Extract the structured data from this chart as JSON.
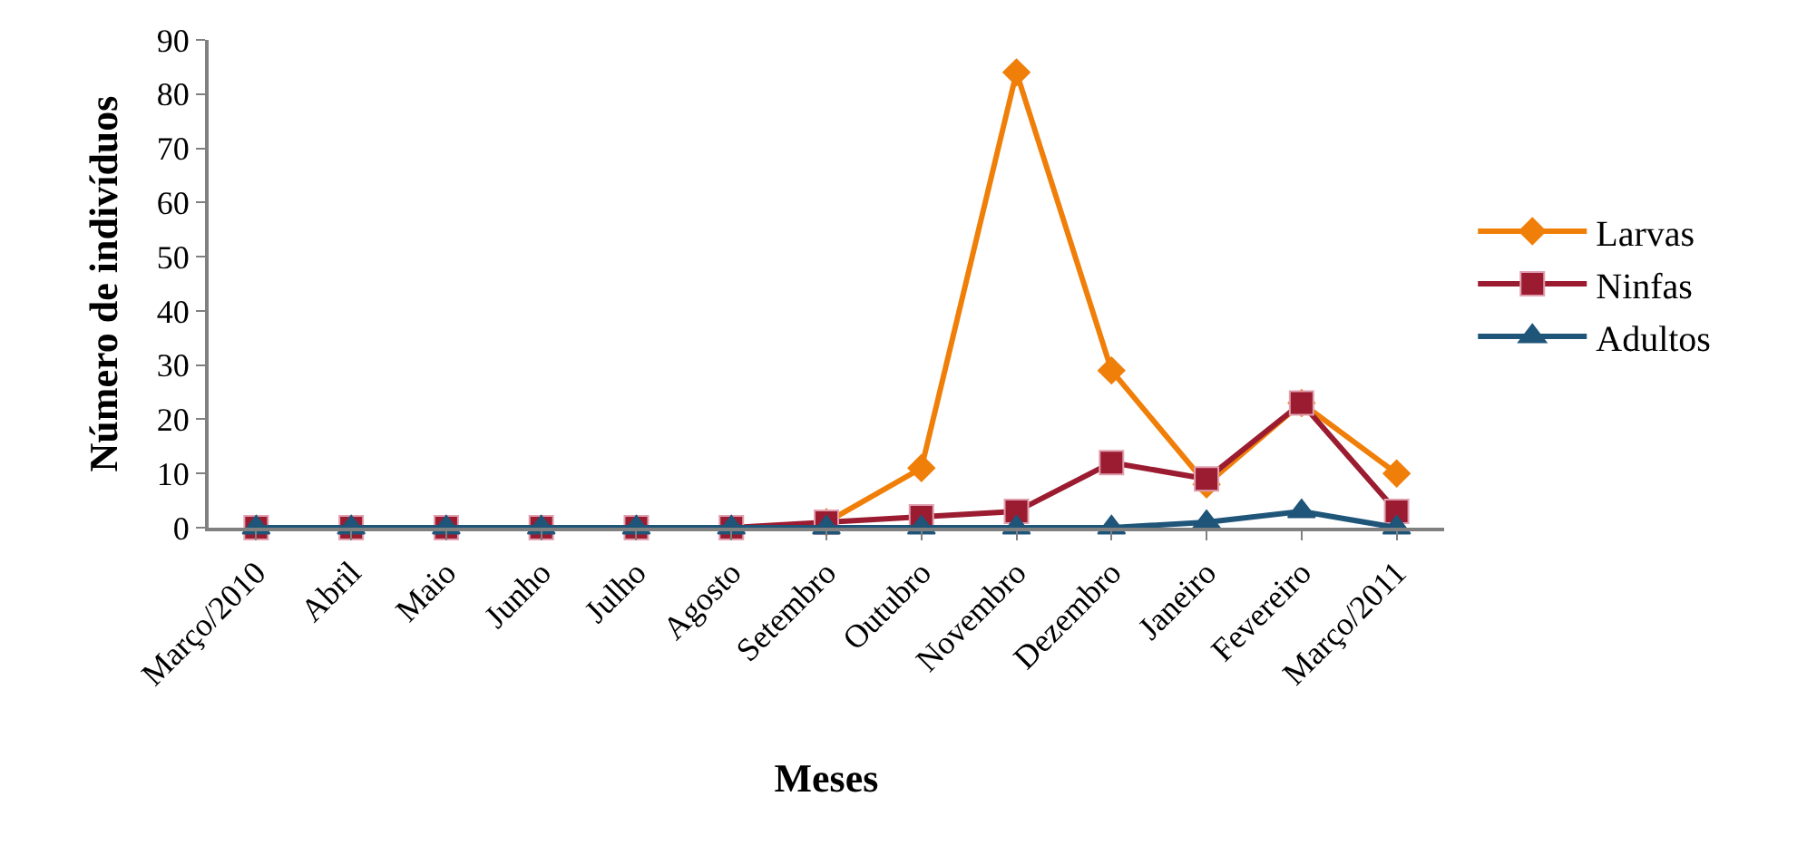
{
  "chart_data": {
    "type": "line",
    "xlabel": "Meses",
    "ylabel": "Número de indivíduos",
    "categories": [
      "Março/2010",
      "Abril",
      "Maio",
      "Junho",
      "Julho",
      "Agosto",
      "Setembro",
      "Outubro",
      "Novembro",
      "Dezembro",
      "Janeiro",
      "Fevereiro",
      "Março/2011"
    ],
    "series": [
      {
        "name": "Larvas",
        "color": "#f07f09",
        "marker": "diamond",
        "values": [
          null,
          null,
          null,
          null,
          null,
          null,
          1,
          11,
          84,
          29,
          8,
          23,
          10
        ]
      },
      {
        "name": "Ninfas",
        "color": "#9b1c31",
        "marker": "square",
        "values": [
          0,
          0,
          0,
          0,
          0,
          0,
          1,
          2,
          3,
          12,
          9,
          23,
          3
        ]
      },
      {
        "name": "Adultos",
        "color": "#1f5579",
        "marker": "triangle",
        "values": [
          0,
          0,
          0,
          0,
          0,
          0,
          0,
          0,
          0,
          0,
          1,
          3,
          0
        ]
      }
    ],
    "ylim": [
      0,
      90
    ],
    "yticks": [
      0,
      10,
      20,
      30,
      40,
      50,
      60,
      70,
      80,
      90
    ],
    "legend": "right"
  }
}
